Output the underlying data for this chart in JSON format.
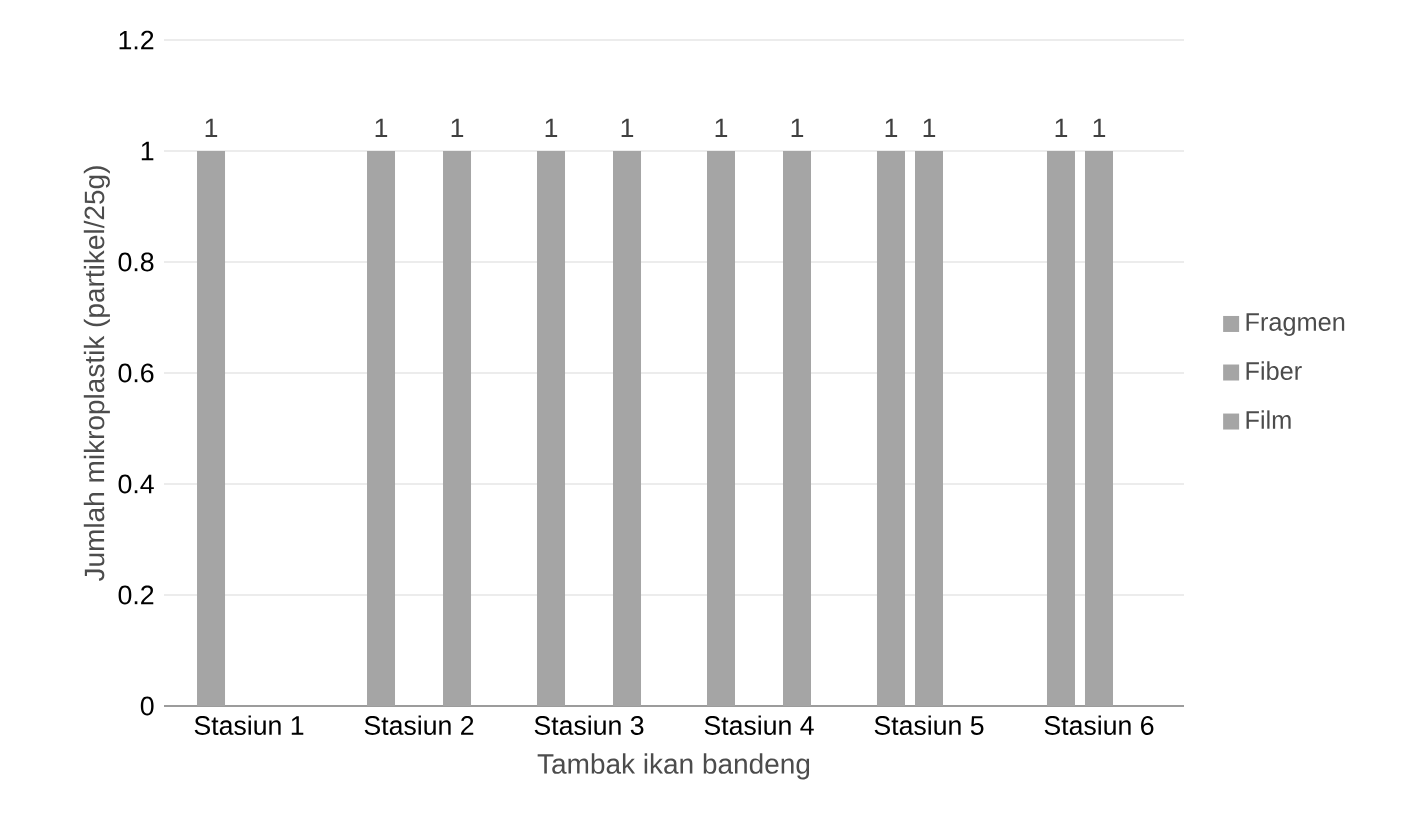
{
  "chart_data": {
    "type": "bar",
    "xlabel": "Tambak ikan bandeng",
    "ylabel": "Jumlah mikroplastik (partikel/25g)",
    "categories": [
      "Stasiun 1",
      "Stasiun 2",
      "Stasiun 3",
      "Stasiun 4",
      "Stasiun 5",
      "Stasiun 6"
    ],
    "series": [
      {
        "name": "Fragmen",
        "color": "#a5a5a5",
        "values": [
          1,
          1,
          1,
          1,
          1,
          1
        ]
      },
      {
        "name": "Fiber",
        "color": "#a5a5a5",
        "values": [
          null,
          null,
          null,
          null,
          1,
          1
        ]
      },
      {
        "name": "Film",
        "color": "#a5a5a5",
        "values": [
          null,
          1,
          1,
          1,
          null,
          null
        ]
      }
    ],
    "ylim": [
      0,
      1.2
    ],
    "yticks": [
      0,
      0.2,
      0.4,
      0.6,
      0.8,
      1,
      1.2
    ],
    "grid": "y",
    "legend": "right",
    "data_labels": true
  }
}
